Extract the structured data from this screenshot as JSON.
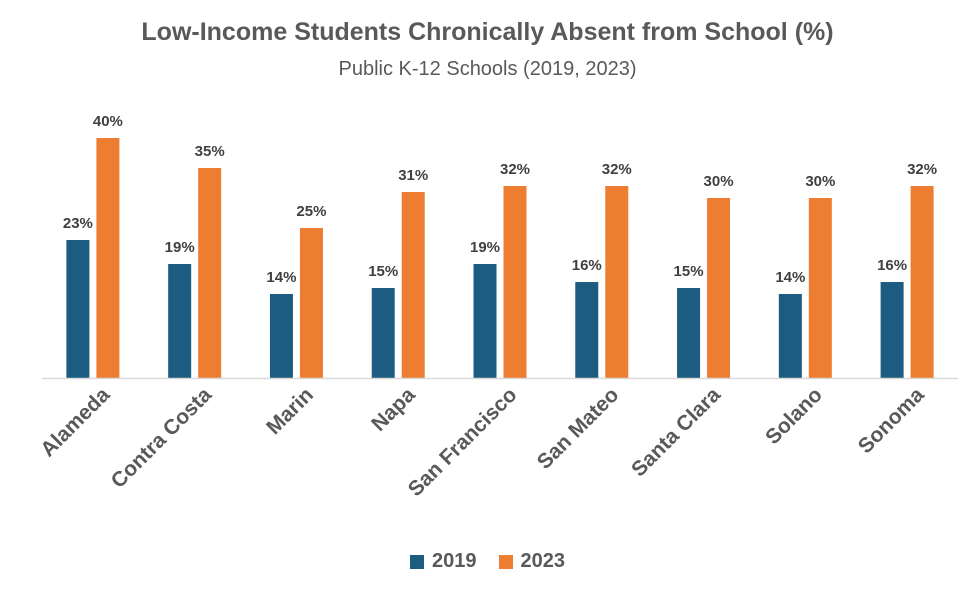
{
  "chart_data": {
    "type": "bar",
    "title": "Low-Income Students Chronically Absent from School (%)",
    "subtitle": "Public K-12 Schools (2019, 2023)",
    "categories": [
      "Alameda",
      "Contra Costa",
      "Marin",
      "Napa",
      "San Francisco",
      "San Mateo",
      "Santa Clara",
      "Solano",
      "Sonoma"
    ],
    "series": [
      {
        "name": "2019",
        "color": "#1b5c80",
        "values": [
          23,
          19,
          14,
          15,
          19,
          16,
          15,
          14,
          16
        ]
      },
      {
        "name": "2023",
        "color": "#ed7d31",
        "values": [
          40,
          35,
          25,
          31,
          32,
          32,
          30,
          30,
          32
        ]
      }
    ],
    "value_suffix": "%",
    "ylim": [
      0,
      42
    ],
    "grid": false,
    "legend": "bottom"
  }
}
